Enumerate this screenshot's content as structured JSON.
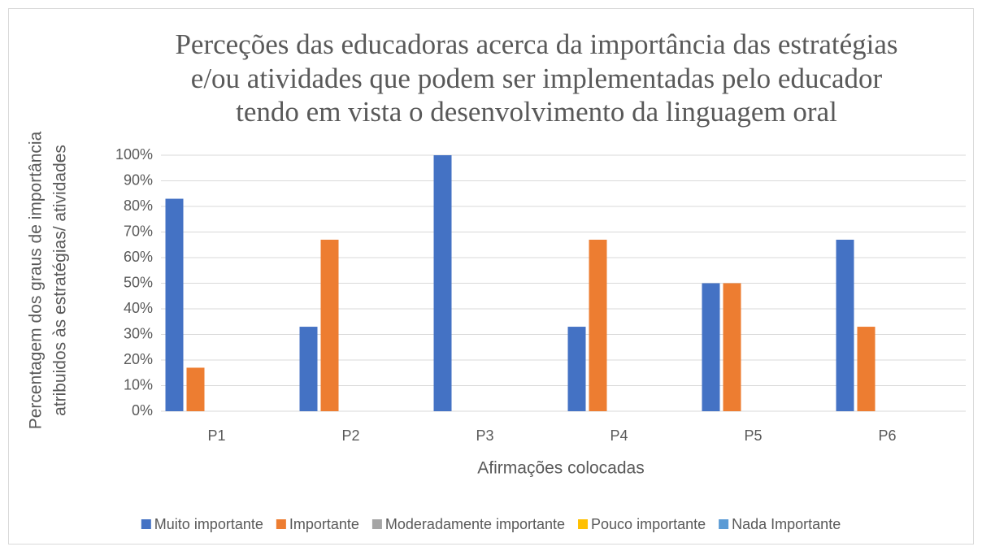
{
  "chart_data": {
    "type": "bar",
    "title": [
      "Perceções das educadoras acerca da importância das estratégias",
      "e/ou atividades que podem ser implementadas pelo educador",
      "tendo em vista o desenvolvimento da linguagem oral"
    ],
    "y_label": [
      "Percentagem dos  graus de importância",
      "atribuidos às estratégias/ atividades"
    ],
    "x_label": "Afirmações colocadas",
    "categories": [
      "P1",
      "P2",
      "P3",
      "P4",
      "P5",
      "P6"
    ],
    "series": [
      {
        "name": "Muito importante",
        "color": "#4472c4",
        "values": [
          83,
          33,
          100,
          33,
          50,
          67
        ]
      },
      {
        "name": "Importante",
        "color": "#ed7d31",
        "values": [
          17,
          67,
          0,
          67,
          50,
          33
        ]
      },
      {
        "name": "Moderadamente importante",
        "color": "#a5a5a5",
        "values": [
          0,
          0,
          0,
          0,
          0,
          0
        ]
      },
      {
        "name": "Pouco importante",
        "color": "#ffc000",
        "values": [
          0,
          0,
          0,
          0,
          0,
          0
        ]
      },
      {
        "name": "Nada Importante",
        "color": "#5b9bd5",
        "values": [
          0,
          0,
          0,
          0,
          0,
          0
        ]
      }
    ],
    "ylim": [
      0,
      100
    ],
    "yticks": [
      {
        "value": 0,
        "label": "0%"
      },
      {
        "value": 10,
        "label": "10%"
      },
      {
        "value": 20,
        "label": "20%"
      },
      {
        "value": 30,
        "label": "30%"
      },
      {
        "value": 40,
        "label": "40%"
      },
      {
        "value": 50,
        "label": "50%"
      },
      {
        "value": 60,
        "label": "60%"
      },
      {
        "value": 70,
        "label": "70%"
      },
      {
        "value": 80,
        "label": "80%"
      },
      {
        "value": 90,
        "label": "90%"
      },
      {
        "value": 100,
        "label": "100%"
      }
    ],
    "grid": true,
    "legend": "bottom"
  }
}
